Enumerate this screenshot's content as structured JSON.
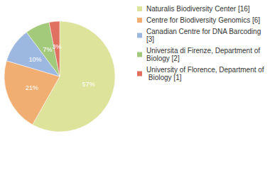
{
  "chart_data": {
    "type": "pie",
    "categories": [
      "Naturalis Biodiversity Center [16]",
      "Centre for Biodiversity Genomics [6]",
      "Canadian Centre for DNA Barcoding [3]",
      "Universita di Firenze, Department of Biology [2]",
      "University of Florence, Department of Biology [1]"
    ],
    "values": [
      57,
      21,
      10,
      7,
      3
    ],
    "value_labels": [
      "57%",
      "21%",
      "10%",
      "7%",
      "3%"
    ],
    "colors": [
      "#dde39a",
      "#f0ae72",
      "#9db8e0",
      "#a3c97a",
      "#e07060"
    ],
    "data_labels": true,
    "legend": "top-right"
  }
}
